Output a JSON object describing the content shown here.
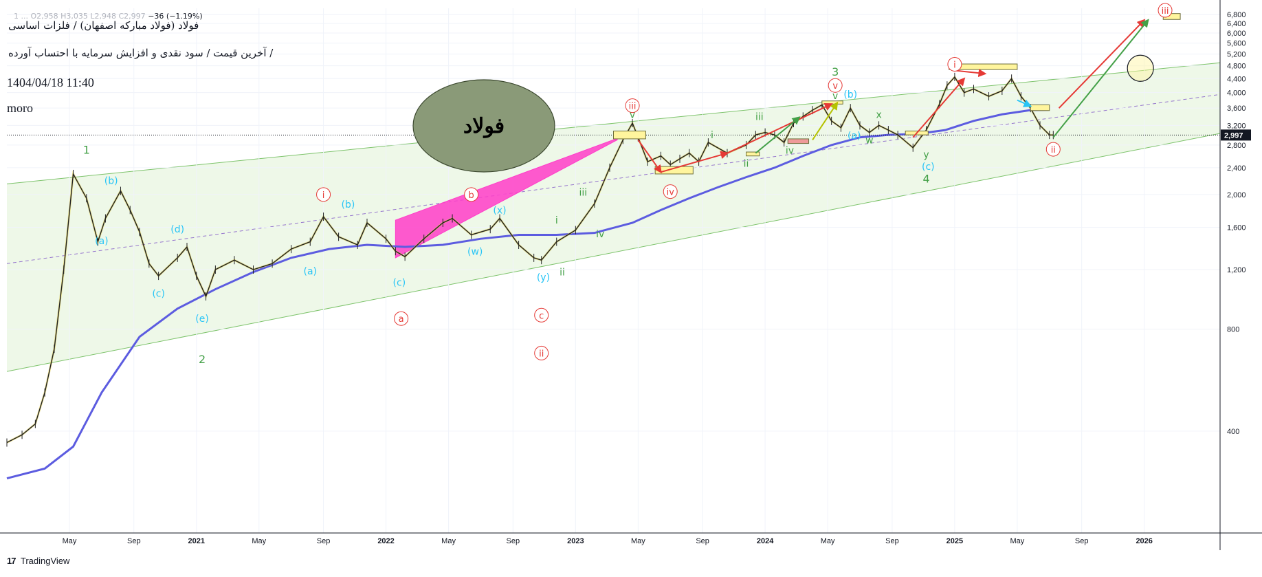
{
  "header": {
    "ohlc_line": "1 ... O2,958 H3,035 L2,948 C2,997",
    "change": "−36 (−1.19%)",
    "symbol_title": "فولاد (فولاد مبارکه اصفهان) / فلزات اساسی",
    "subtitle": "آخرین قیمت / سود نقدی و افزایش سرمایه با احتساب آورده /",
    "date": "1404/04/18 11:40",
    "author": "moro"
  },
  "badge": {
    "label": "فولاد",
    "color": "#8a9a78"
  },
  "footer": {
    "brand": "TradingView",
    "logo_mark": "17"
  },
  "colors": {
    "channel_fill": "#e8f5e0",
    "channel_line": "#7dc36b",
    "midline": "#9575cd",
    "ma_line": "#5c5ce0",
    "price": "#222222",
    "red": "#e53935",
    "green": "#43a047",
    "cyan": "#29c5f6",
    "magenta": "#ff3dc8",
    "yellow_box": "#fff59d"
  },
  "chart_data": {
    "type": "line",
    "title": "",
    "xlabel": "",
    "ylabel": "",
    "x_ticks": [
      "May",
      "Sep",
      "2021",
      "May",
      "Sep",
      "2022",
      "May",
      "Sep",
      "2023",
      "May",
      "Sep",
      "2024",
      "May",
      "Sep",
      "2025",
      "May",
      "Sep",
      "2026"
    ],
    "x_tick_dates": [
      2020.33,
      2020.67,
      2021.0,
      2021.33,
      2021.67,
      2022.0,
      2022.33,
      2022.67,
      2023.0,
      2023.33,
      2023.67,
      2024.0,
      2024.33,
      2024.67,
      2025.0,
      2025.33,
      2025.67,
      2026.0
    ],
    "xlim": [
      2020.0,
      2026.4
    ],
    "ylim": [
      200,
      7100
    ],
    "y_scale": "log",
    "y_ticks": [
      "6,800",
      "6,400",
      "6,000",
      "5,600",
      "5,200",
      "4,800",
      "4,400",
      "4,000",
      "3,600",
      "3,200",
      "2,800",
      "2,400",
      "2,000",
      "1,600",
      "1,200",
      "800",
      "400"
    ],
    "y_tick_values": [
      6800,
      6400,
      6000,
      5600,
      5200,
      4800,
      4400,
      4000,
      3600,
      3200,
      2800,
      2400,
      2000,
      1600,
      1200,
      800,
      400
    ],
    "last_price": 2997,
    "last_price_label": "2,997",
    "series": [
      {
        "x": [
          2020.0,
          2020.08,
          2020.15,
          2020.2,
          2020.25,
          2020.3,
          2020.35,
          2020.42,
          2020.48,
          2020.52,
          2020.6,
          2020.65,
          2020.7,
          2020.75,
          2020.8,
          2020.9,
          2020.95,
          2021.0,
          2021.05,
          2021.1,
          2021.2,
          2021.3,
          2021.4,
          2021.5,
          2021.6,
          2021.67,
          2021.75,
          2021.85,
          2021.9,
          2022.0,
          2022.05,
          2022.1,
          2022.2,
          2022.3,
          2022.35,
          2022.45,
          2022.55,
          2022.6,
          2022.7,
          2022.78,
          2022.82,
          2022.9,
          2023.0,
          2023.1,
          2023.18,
          2023.25,
          2023.3,
          2023.33,
          2023.38,
          2023.45,
          2023.5,
          2023.55,
          2023.6,
          2023.65,
          2023.7,
          2023.8,
          2023.9,
          2023.95,
          2024.0,
          2024.05,
          2024.1,
          2024.15,
          2024.2,
          2024.25,
          2024.3,
          2024.35,
          2024.4,
          2024.45,
          2024.5,
          2024.55,
          2024.6,
          2024.65,
          2024.7,
          2024.78,
          2024.85,
          2024.92,
          2024.96,
          2025.0,
          2025.05,
          2025.1,
          2025.18,
          2025.25,
          2025.3,
          2025.35,
          2025.4,
          2025.45,
          2025.5,
          2025.52
        ],
        "y": [
          370,
          390,
          420,
          520,
          700,
          1200,
          2300,
          1950,
          1450,
          1700,
          2050,
          1800,
          1550,
          1250,
          1150,
          1300,
          1400,
          1150,
          1000,
          1200,
          1280,
          1200,
          1250,
          1380,
          1450,
          1720,
          1500,
          1420,
          1650,
          1480,
          1360,
          1310,
          1480,
          1650,
          1700,
          1520,
          1580,
          1700,
          1420,
          1300,
          1280,
          1450,
          1570,
          1880,
          2400,
          2900,
          3250,
          2950,
          2500,
          2600,
          2450,
          2550,
          2650,
          2500,
          2850,
          2650,
          2800,
          3000,
          3050,
          3000,
          2850,
          3250,
          3400,
          3550,
          3680,
          3300,
          3150,
          3600,
          3200,
          3050,
          3200,
          3100,
          3000,
          2750,
          3100,
          3700,
          4200,
          4450,
          4000,
          4100,
          3900,
          4050,
          4400,
          3900,
          3600,
          3200,
          3000,
          2997
        ],
        "x_dates": [
          "2020.00",
          "2020.08",
          "2020.15",
          "2020.20",
          "2020.25",
          "2020.30",
          "2020.35",
          "2020.42",
          "2020.48",
          "2020.52",
          "2020.60",
          "2020.65",
          "2020.70",
          "2020.75",
          "2020.80",
          "2020.90",
          "2020.95",
          "2021.00",
          "2021.05",
          "2021.10",
          "2021.20",
          "2021.30",
          "2021.40",
          "2021.50",
          "2021.60",
          "2021.67",
          "2021.75",
          "2021.85",
          "2021.90",
          "2022.00",
          "2022.05",
          "2022.10",
          "2022.20",
          "2022.30",
          "2022.35",
          "2022.45",
          "2022.55",
          "2022.60",
          "2022.70",
          "2022.78",
          "2022.82",
          "2022.90",
          "2023.00",
          "2023.10",
          "2023.18",
          "2023.25",
          "2023.30",
          "2023.33",
          "2023.38",
          "2023.45",
          "2023.50",
          "2023.55",
          "2023.60",
          "2023.65",
          "2023.70",
          "2023.80",
          "2023.90",
          "2023.95",
          "2024.00",
          "2024.05",
          "2024.10",
          "2024.15",
          "2024.20",
          "2024.25",
          "2024.30",
          "2024.35",
          "2024.40",
          "2024.45",
          "2024.50",
          "2024.55",
          "2024.60",
          "2024.65",
          "2024.70",
          "2024.78",
          "2024.85",
          "2024.92",
          "2024.96",
          "2025.00",
          "2025.05",
          "2025.10",
          "2025.18",
          "2025.25",
          "2025.30",
          "2025.35",
          "2025.40",
          "2025.45",
          "2025.50",
          "2025.52"
        ]
      },
      {
        "kind": "moving_average",
        "x": [
          2020.0,
          2020.2,
          2020.35,
          2020.5,
          2020.7,
          2020.9,
          2021.1,
          2021.3,
          2021.5,
          2021.7,
          2021.9,
          2022.1,
          2022.3,
          2022.5,
          2022.7,
          2022.9,
          2023.1,
          2023.3,
          2023.45,
          2023.6,
          2023.75,
          2023.9,
          2024.05,
          2024.2,
          2024.35,
          2024.5,
          2024.65,
          2024.8,
          2024.95,
          2025.1,
          2025.25,
          2025.4,
          2025.5
        ],
        "y": [
          290,
          310,
          360,
          520,
          760,
          920,
          1050,
          1180,
          1300,
          1380,
          1420,
          1400,
          1420,
          1480,
          1520,
          1520,
          1540,
          1650,
          1800,
          1950,
          2100,
          2250,
          2400,
          2600,
          2800,
          2950,
          3000,
          3020,
          3100,
          3300,
          3450,
          3550,
          3560
        ]
      }
    ],
    "channel": {
      "upper": {
        "x": [
          2020.0,
          2026.4
        ],
        "y": [
          2150,
          4900
        ]
      },
      "middle": {
        "x": [
          2020.0,
          2026.4
        ],
        "y": [
          1250,
          3950
        ]
      },
      "lower": {
        "x": [
          2020.0,
          2026.4
        ],
        "y": [
          600,
          3030
        ]
      }
    },
    "arrows": [
      {
        "color": "red",
        "from": [
          2023.33,
          2900
        ],
        "to": [
          2023.45,
          2330
        ]
      },
      {
        "color": "red",
        "from": [
          2023.45,
          2330
        ],
        "to": [
          2023.8,
          2650
        ]
      },
      {
        "color": "red",
        "from": [
          2023.8,
          2650
        ],
        "to": [
          2024.35,
          3700
        ]
      },
      {
        "color": "red",
        "from": [
          2024.78,
          2950
        ],
        "to": [
          2025.05,
          4400
        ]
      },
      {
        "color": "red",
        "from": [
          2025.0,
          4650
        ],
        "to": [
          2025.16,
          4550
        ]
      },
      {
        "color": "red",
        "from": [
          2025.55,
          3600
        ],
        "to": [
          2026.0,
          6550
        ]
      },
      {
        "color": "green",
        "from": [
          2025.52,
          2950
        ],
        "to": [
          2026.02,
          6550
        ]
      },
      {
        "color": "green",
        "from": [
          2023.95,
          2650
        ],
        "to": [
          2024.18,
          3380
        ]
      },
      {
        "color": "olive",
        "from": [
          2024.25,
          2900
        ],
        "to": [
          2024.38,
          3730
        ]
      },
      {
        "color": "cyan",
        "from": [
          2025.33,
          3800
        ],
        "to": [
          2025.4,
          3650
        ]
      }
    ],
    "boxes": [
      {
        "color": "yellow",
        "x": [
          2023.2,
          2023.37
        ],
        "y": [
          2920,
          3080
        ]
      },
      {
        "color": "yellow",
        "x": [
          2023.42,
          2023.62
        ],
        "y": [
          2300,
          2420
        ]
      },
      {
        "color": "yellow",
        "x": [
          2023.9,
          2023.97
        ],
        "y": [
          2600,
          2670
        ]
      },
      {
        "color": "pink",
        "x": [
          2024.12,
          2024.23
        ],
        "y": [
          2830,
          2920
        ]
      },
      {
        "color": "yellow",
        "x": [
          2024.3,
          2024.41
        ],
        "y": [
          3700,
          3780
        ]
      },
      {
        "color": "yellow",
        "x": [
          2024.74,
          2024.86
        ],
        "y": [
          3000,
          3080
        ]
      },
      {
        "color": "yellow",
        "x": [
          2024.97,
          2025.33
        ],
        "y": [
          4680,
          4860
        ]
      },
      {
        "color": "yellow",
        "x": [
          2025.4,
          2025.5
        ],
        "y": [
          3540,
          3680
        ]
      },
      {
        "color": "yellow",
        "x": [
          2026.1,
          2026.19
        ],
        "y": [
          6580,
          6850
        ]
      }
    ],
    "magenta_wedge": {
      "x": [
        2022.05,
        2022.05,
        2023.22,
        2023.22
      ],
      "y": [
        1300,
        1680,
        2930,
        2900
      ]
    },
    "circle_target": {
      "x": 2025.98,
      "y": 4720
    },
    "labels": [
      {
        "text": "1",
        "color": "green",
        "x": 2020.42,
        "y": 2700,
        "circled": false
      },
      {
        "text": "2",
        "color": "green",
        "x": 2021.03,
        "y": 650,
        "circled": false
      },
      {
        "text": "3",
        "color": "green",
        "x": 2024.37,
        "y": 4600,
        "circled": false
      },
      {
        "text": "4",
        "color": "green",
        "x": 2024.85,
        "y": 2220,
        "circled": false
      },
      {
        "text": "(b)",
        "color": "cyan",
        "x": 2020.55,
        "y": 2200,
        "circled": false
      },
      {
        "text": "(a)",
        "color": "cyan",
        "x": 2020.5,
        "y": 1460,
        "circled": false
      },
      {
        "text": "(c)",
        "color": "cyan",
        "x": 2020.8,
        "y": 1020,
        "circled": false
      },
      {
        "text": "(d)",
        "color": "cyan",
        "x": 2020.9,
        "y": 1580,
        "circled": false
      },
      {
        "text": "(e)",
        "color": "cyan",
        "x": 2021.03,
        "y": 860,
        "circled": false
      },
      {
        "text": "(a)",
        "color": "cyan",
        "x": 2021.6,
        "y": 1190,
        "circled": false
      },
      {
        "text": "(b)",
        "color": "cyan",
        "x": 2021.8,
        "y": 1870,
        "circled": false
      },
      {
        "text": "(c)",
        "color": "cyan",
        "x": 2022.07,
        "y": 1100,
        "circled": false
      },
      {
        "text": "(x)",
        "color": "cyan",
        "x": 2022.6,
        "y": 1800,
        "circled": false
      },
      {
        "text": "(w)",
        "color": "cyan",
        "x": 2022.47,
        "y": 1360,
        "circled": false
      },
      {
        "text": "(y)",
        "color": "cyan",
        "x": 2022.83,
        "y": 1140,
        "circled": false
      },
      {
        "text": "(b)",
        "color": "cyan",
        "x": 2024.45,
        "y": 3960,
        "circled": false
      },
      {
        "text": "(a)",
        "color": "cyan",
        "x": 2024.47,
        "y": 2990,
        "circled": false
      },
      {
        "text": "(c)",
        "color": "cyan",
        "x": 2024.86,
        "y": 2420,
        "circled": false
      },
      {
        "text": "i",
        "color": "red",
        "x": 2021.67,
        "y": 2000,
        "circled": true
      },
      {
        "text": "a",
        "color": "red",
        "x": 2022.08,
        "y": 860,
        "circled": true
      },
      {
        "text": "b",
        "color": "red",
        "x": 2022.45,
        "y": 2000,
        "circled": true
      },
      {
        "text": "c",
        "color": "red",
        "x": 2022.82,
        "y": 880,
        "circled": true
      },
      {
        "text": "ii",
        "color": "red",
        "x": 2022.82,
        "y": 680,
        "circled": true
      },
      {
        "text": "iii",
        "color": "red",
        "x": 2023.3,
        "y": 3660,
        "circled": true
      },
      {
        "text": "iv",
        "color": "red",
        "x": 2023.5,
        "y": 2040,
        "circled": true
      },
      {
        "text": "v",
        "color": "red",
        "x": 2024.37,
        "y": 4200,
        "circled": true
      },
      {
        "text": "i",
        "color": "red",
        "x": 2025.0,
        "y": 4850,
        "circled": true
      },
      {
        "text": "ii",
        "color": "red",
        "x": 2025.52,
        "y": 2720,
        "circled": true
      },
      {
        "text": "iii",
        "color": "red",
        "x": 2026.11,
        "y": 7000,
        "circled": true
      },
      {
        "text": "v",
        "color": "green",
        "x": 2023.3,
        "y": 3450,
        "circled": false
      },
      {
        "text": "v",
        "color": "green",
        "x": 2024.37,
        "y": 3920,
        "circled": false
      },
      {
        "text": "iii",
        "color": "green",
        "x": 2023.04,
        "y": 2030,
        "circled": false
      },
      {
        "text": "i",
        "color": "green",
        "x": 2022.9,
        "y": 1680,
        "circled": false
      },
      {
        "text": "ii",
        "color": "green",
        "x": 2022.93,
        "y": 1180,
        "circled": false
      },
      {
        "text": "iv",
        "color": "green",
        "x": 2023.13,
        "y": 1530,
        "circled": false
      },
      {
        "text": "i",
        "color": "green",
        "x": 2023.72,
        "y": 3000,
        "circled": false
      },
      {
        "text": "ii",
        "color": "green",
        "x": 2023.9,
        "y": 2470,
        "circled": false
      },
      {
        "text": "iii",
        "color": "green",
        "x": 2023.97,
        "y": 3400,
        "circled": false
      },
      {
        "text": "iv",
        "color": "green",
        "x": 2024.13,
        "y": 2700,
        "circled": false
      },
      {
        "text": "x",
        "color": "green",
        "x": 2024.6,
        "y": 3450,
        "circled": false
      },
      {
        "text": "w",
        "color": "green",
        "x": 2024.55,
        "y": 2900,
        "circled": false
      },
      {
        "text": "y",
        "color": "green",
        "x": 2024.85,
        "y": 2630,
        "circled": false
      }
    ]
  }
}
